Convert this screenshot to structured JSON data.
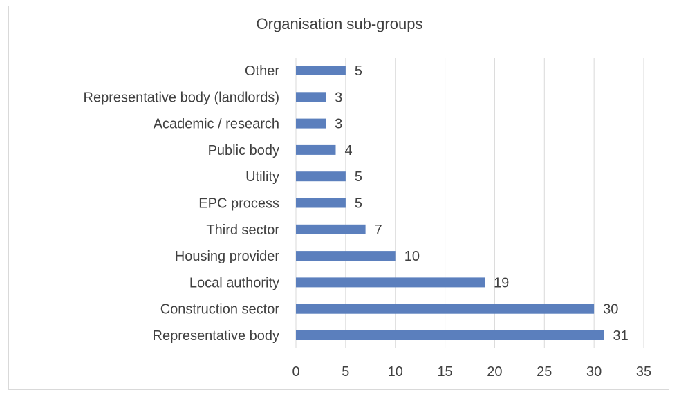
{
  "chart_data": {
    "type": "bar",
    "orientation": "horizontal",
    "title": "Organisation sub-groups",
    "xlabel": "",
    "ylabel": "",
    "categories": [
      "Other",
      "Representative body (landlords)",
      "Academic / research",
      "Public body",
      "Utility",
      "EPC process",
      "Third sector",
      "Housing provider",
      "Local authority",
      "Construction sector",
      "Representative body"
    ],
    "values": [
      5,
      3,
      3,
      4,
      5,
      5,
      7,
      10,
      19,
      30,
      31
    ],
    "xlim": [
      0,
      35
    ],
    "xticks": [
      0,
      5,
      10,
      15,
      20,
      25,
      30,
      35
    ],
    "grid": "vertical",
    "legend": "none",
    "bar_color": "#5b7fbd",
    "grid_color": "#d9d9d9"
  }
}
